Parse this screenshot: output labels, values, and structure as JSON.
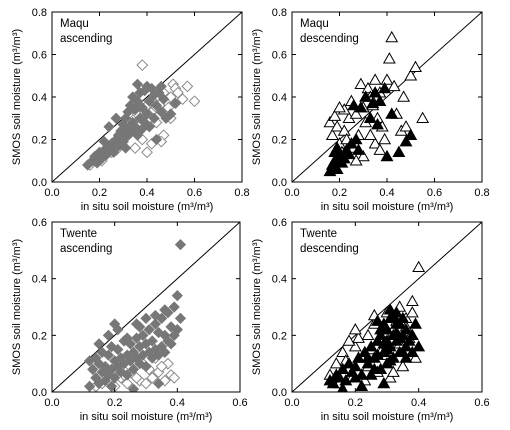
{
  "chart_data": [
    {
      "type": "scatter",
      "title": "",
      "label": [
        "Maqu",
        "ascending"
      ],
      "xlabel": "in situ soil moisture (m³/m³)",
      "ylabel": "SMOS soil moisture (m³/m³)",
      "xlim": [
        0,
        0.8
      ],
      "ylim": [
        0,
        0.8
      ],
      "xticks": [
        "0.0",
        "0.2",
        "0.4",
        "0.6",
        "0.8"
      ],
      "yticks": [
        "0.0",
        "0.2",
        "0.4",
        "0.6",
        "0.8"
      ],
      "reference_line": "1:1",
      "series": [
        {
          "marker": "diamond-open",
          "color": "#8a8a8a",
          "x": [
            0.16,
            0.18,
            0.19,
            0.21,
            0.23,
            0.25,
            0.27,
            0.29,
            0.3,
            0.32,
            0.33,
            0.34,
            0.35,
            0.36,
            0.37,
            0.38,
            0.39,
            0.4,
            0.41,
            0.42,
            0.43,
            0.44,
            0.45,
            0.46,
            0.47,
            0.48,
            0.49,
            0.5,
            0.51,
            0.52,
            0.53,
            0.55,
            0.57,
            0.6,
            0.38,
            0.42,
            0.47,
            0.35,
            0.44,
            0.5,
            0.4,
            0.46
          ],
          "y": [
            0.08,
            0.1,
            0.12,
            0.1,
            0.13,
            0.14,
            0.15,
            0.18,
            0.2,
            0.22,
            0.25,
            0.27,
            0.3,
            0.32,
            0.28,
            0.55,
            0.33,
            0.36,
            0.3,
            0.38,
            0.34,
            0.35,
            0.4,
            0.37,
            0.42,
            0.38,
            0.35,
            0.4,
            0.46,
            0.44,
            0.42,
            0.39,
            0.45,
            0.38,
            0.2,
            0.18,
            0.22,
            0.16,
            0.28,
            0.3,
            0.14,
            0.19
          ]
        },
        {
          "marker": "diamond-filled",
          "color": "#777777",
          "x": [
            0.15,
            0.17,
            0.18,
            0.19,
            0.2,
            0.21,
            0.22,
            0.23,
            0.24,
            0.25,
            0.26,
            0.27,
            0.28,
            0.28,
            0.29,
            0.3,
            0.3,
            0.31,
            0.31,
            0.32,
            0.32,
            0.33,
            0.33,
            0.34,
            0.34,
            0.35,
            0.35,
            0.36,
            0.36,
            0.37,
            0.37,
            0.38,
            0.38,
            0.39,
            0.39,
            0.4,
            0.4,
            0.41,
            0.41,
            0.42,
            0.43,
            0.43,
            0.44,
            0.45,
            0.46,
            0.46,
            0.47,
            0.48,
            0.5,
            0.52,
            0.24,
            0.27,
            0.31,
            0.22,
            0.36,
            0.44
          ],
          "y": [
            0.08,
            0.1,
            0.12,
            0.09,
            0.14,
            0.11,
            0.15,
            0.13,
            0.16,
            0.18,
            0.14,
            0.2,
            0.17,
            0.22,
            0.24,
            0.19,
            0.27,
            0.21,
            0.3,
            0.25,
            0.33,
            0.23,
            0.36,
            0.28,
            0.4,
            0.26,
            0.34,
            0.22,
            0.38,
            0.3,
            0.42,
            0.25,
            0.35,
            0.28,
            0.43,
            0.32,
            0.45,
            0.26,
            0.38,
            0.44,
            0.3,
            0.41,
            0.36,
            0.42,
            0.33,
            0.45,
            0.39,
            0.3,
            0.32,
            0.37,
            0.26,
            0.3,
            0.16,
            0.19,
            0.46,
            0.2
          ]
        }
      ]
    },
    {
      "type": "scatter",
      "title": "",
      "label": [
        "Maqu",
        "descending"
      ],
      "xlabel": "in situ soil moisture (m³/m³)",
      "ylabel": "SMOS soil moisture (m³/m³)",
      "xlim": [
        0,
        0.8
      ],
      "ylim": [
        0,
        0.8
      ],
      "xticks": [
        "0.0",
        "0.2",
        "0.4",
        "0.6",
        "0.8"
      ],
      "yticks": [
        "0.0",
        "0.2",
        "0.4",
        "0.6",
        "0.8"
      ],
      "reference_line": "1:1",
      "series": [
        {
          "marker": "triangle-open",
          "color": "#000000",
          "x": [
            0.16,
            0.17,
            0.18,
            0.19,
            0.2,
            0.21,
            0.22,
            0.23,
            0.24,
            0.25,
            0.26,
            0.27,
            0.28,
            0.29,
            0.3,
            0.31,
            0.32,
            0.33,
            0.34,
            0.35,
            0.36,
            0.37,
            0.38,
            0.39,
            0.4,
            0.42,
            0.44,
            0.46,
            0.48,
            0.5,
            0.52,
            0.55,
            0.41,
            0.43,
            0.35,
            0.3,
            0.27,
            0.22,
            0.37,
            0.47,
            0.2,
            0.33
          ],
          "y": [
            0.28,
            0.22,
            0.31,
            0.26,
            0.18,
            0.14,
            0.24,
            0.2,
            0.3,
            0.38,
            0.16,
            0.32,
            0.22,
            0.46,
            0.35,
            0.28,
            0.44,
            0.4,
            0.36,
            0.48,
            0.3,
            0.42,
            0.26,
            0.2,
            0.48,
            0.68,
            0.32,
            0.24,
            0.26,
            0.5,
            0.54,
            0.3,
            0.58,
            0.45,
            0.18,
            0.12,
            0.1,
            0.34,
            0.15,
            0.4,
            0.35,
            0.22
          ]
        },
        {
          "marker": "triangle-filled",
          "color": "#000000",
          "x": [
            0.16,
            0.17,
            0.18,
            0.18,
            0.19,
            0.2,
            0.21,
            0.22,
            0.23,
            0.24,
            0.25,
            0.27,
            0.29,
            0.31,
            0.33,
            0.35,
            0.37,
            0.39,
            0.42,
            0.45,
            0.48,
            0.5,
            0.28,
            0.36,
            0.4,
            0.19,
            0.26,
            0.34
          ],
          "y": [
            0.05,
            0.08,
            0.1,
            0.14,
            0.06,
            0.12,
            0.09,
            0.11,
            0.15,
            0.13,
            0.18,
            0.2,
            0.35,
            0.4,
            0.3,
            0.42,
            0.38,
            0.44,
            0.32,
            0.14,
            0.19,
            0.22,
            0.15,
            0.27,
            0.12,
            0.16,
            0.36,
            0.37
          ]
        }
      ]
    },
    {
      "type": "scatter",
      "title": "",
      "label": [
        "Twente",
        "ascending"
      ],
      "xlabel": "in situ soil moisture (m³/m³)",
      "ylabel": "SMOS soil moisture (m³/m³)",
      "xlim": [
        0,
        0.6
      ],
      "ylim": [
        0,
        0.6
      ],
      "xticks": [
        "0.0",
        "0.2",
        "0.4",
        "0.6"
      ],
      "yticks": [
        "0.0",
        "0.2",
        "0.4",
        "0.6"
      ],
      "reference_line": "1:1",
      "series": [
        {
          "marker": "diamond-open",
          "color": "#8a8a8a",
          "x": [
            0.14,
            0.16,
            0.18,
            0.2,
            0.22,
            0.24,
            0.26,
            0.28,
            0.3,
            0.32,
            0.34,
            0.36,
            0.38,
            0.21,
            0.25,
            0.29,
            0.33,
            0.37,
            0.19,
            0.27,
            0.31,
            0.35,
            0.23,
            0.39
          ],
          "y": [
            0.02,
            0.03,
            0.04,
            0.02,
            0.05,
            0.03,
            0.06,
            0.04,
            0.03,
            0.05,
            0.07,
            0.04,
            0.06,
            0.08,
            0.09,
            0.1,
            0.12,
            0.1,
            0.07,
            0.05,
            0.08,
            0.09,
            0.06,
            0.05
          ]
        },
        {
          "marker": "diamond-filled",
          "color": "#777777",
          "x": [
            0.12,
            0.13,
            0.14,
            0.14,
            0.15,
            0.15,
            0.16,
            0.16,
            0.17,
            0.17,
            0.18,
            0.18,
            0.19,
            0.19,
            0.2,
            0.2,
            0.21,
            0.21,
            0.22,
            0.22,
            0.23,
            0.23,
            0.24,
            0.24,
            0.25,
            0.25,
            0.26,
            0.26,
            0.27,
            0.27,
            0.28,
            0.28,
            0.29,
            0.29,
            0.3,
            0.3,
            0.31,
            0.31,
            0.32,
            0.32,
            0.33,
            0.33,
            0.34,
            0.34,
            0.35,
            0.35,
            0.36,
            0.36,
            0.37,
            0.37,
            0.38,
            0.38,
            0.39,
            0.39,
            0.4,
            0.4,
            0.41,
            0.41,
            0.15,
            0.18,
            0.21,
            0.24,
            0.27,
            0.3,
            0.33,
            0.36,
            0.12,
            0.2,
            0.28,
            0.19,
            0.26,
            0.34
          ],
          "y": [
            0.02,
            0.08,
            0.05,
            0.12,
            0.03,
            0.1,
            0.07,
            0.14,
            0.04,
            0.09,
            0.06,
            0.13,
            0.08,
            0.16,
            0.05,
            0.11,
            0.09,
            0.15,
            0.07,
            0.12,
            0.1,
            0.18,
            0.06,
            0.13,
            0.11,
            0.17,
            0.08,
            0.14,
            0.12,
            0.19,
            0.1,
            0.16,
            0.13,
            0.2,
            0.09,
            0.17,
            0.14,
            0.22,
            0.12,
            0.18,
            0.15,
            0.24,
            0.13,
            0.21,
            0.16,
            0.26,
            0.14,
            0.2,
            0.18,
            0.28,
            0.17,
            0.23,
            0.2,
            0.3,
            0.22,
            0.34,
            0.26,
            0.52,
            0.17,
            0.2,
            0.22,
            0.19,
            0.24,
            0.26,
            0.27,
            0.29,
            0.11,
            0.24,
            0.23,
            0.02,
            0.01,
            0.03
          ]
        }
      ]
    },
    {
      "type": "scatter",
      "title": "",
      "label": [
        "Twente",
        "descending"
      ],
      "xlabel": "in situ soil moisture (m³/m³)",
      "ylabel": "SMOS soil moisture (m³/m³)",
      "xlim": [
        0,
        0.6
      ],
      "ylim": [
        0,
        0.6
      ],
      "xticks": [
        "0.0",
        "0.2",
        "0.4",
        "0.6"
      ],
      "yticks": [
        "0.0",
        "0.2",
        "0.4",
        "0.6"
      ],
      "reference_line": "1:1",
      "series": [
        {
          "marker": "triangle-open",
          "color": "#000000",
          "x": [
            0.12,
            0.14,
            0.16,
            0.18,
            0.2,
            0.22,
            0.24,
            0.26,
            0.28,
            0.3,
            0.32,
            0.34,
            0.36,
            0.38,
            0.4,
            0.15,
            0.19,
            0.23,
            0.27,
            0.31,
            0.35,
            0.39,
            0.17,
            0.21,
            0.25,
            0.29,
            0.33,
            0.37,
            0.2,
            0.26,
            0.3,
            0.34,
            0.24,
            0.28,
            0.32,
            0.36,
            0.18,
            0.38
          ],
          "y": [
            0.06,
            0.1,
            0.14,
            0.08,
            0.16,
            0.12,
            0.2,
            0.24,
            0.18,
            0.28,
            0.22,
            0.3,
            0.26,
            0.32,
            0.44,
            0.03,
            0.05,
            0.04,
            0.07,
            0.05,
            0.09,
            0.12,
            0.11,
            0.19,
            0.15,
            0.21,
            0.25,
            0.19,
            0.22,
            0.27,
            0.13,
            0.17,
            0.09,
            0.14,
            0.07,
            0.23,
            0.18,
            0.28
          ]
        },
        {
          "marker": "triangle-filled",
          "color": "#000000",
          "x": [
            0.12,
            0.13,
            0.14,
            0.15,
            0.16,
            0.17,
            0.18,
            0.19,
            0.2,
            0.21,
            0.22,
            0.23,
            0.24,
            0.25,
            0.26,
            0.27,
            0.28,
            0.28,
            0.29,
            0.29,
            0.3,
            0.3,
            0.31,
            0.31,
            0.32,
            0.32,
            0.33,
            0.33,
            0.34,
            0.34,
            0.35,
            0.35,
            0.36,
            0.36,
            0.37,
            0.38,
            0.39,
            0.4,
            0.25,
            0.27,
            0.29,
            0.31,
            0.33,
            0.35,
            0.22,
            0.26,
            0.3,
            0.34,
            0.24,
            0.28,
            0.32,
            0.36,
            0.16,
            0.2,
            0.38,
            0.3,
            0.27,
            0.33,
            0.31,
            0.29
          ],
          "y": [
            0.04,
            0.03,
            0.06,
            0.05,
            0.08,
            0.04,
            0.1,
            0.07,
            0.09,
            0.12,
            0.06,
            0.14,
            0.1,
            0.16,
            0.12,
            0.18,
            0.08,
            0.2,
            0.14,
            0.24,
            0.1,
            0.22,
            0.16,
            0.26,
            0.12,
            0.2,
            0.18,
            0.28,
            0.14,
            0.24,
            0.2,
            0.26,
            0.16,
            0.22,
            0.18,
            0.2,
            0.24,
            0.16,
            0.06,
            0.13,
            0.17,
            0.11,
            0.24,
            0.14,
            0.02,
            0.08,
            0.15,
            0.19,
            0.12,
            0.22,
            0.27,
            0.12,
            0.01,
            0.05,
            0.14,
            0.18,
            0.25,
            0.21,
            0.29,
            0.03
          ]
        }
      ]
    }
  ]
}
